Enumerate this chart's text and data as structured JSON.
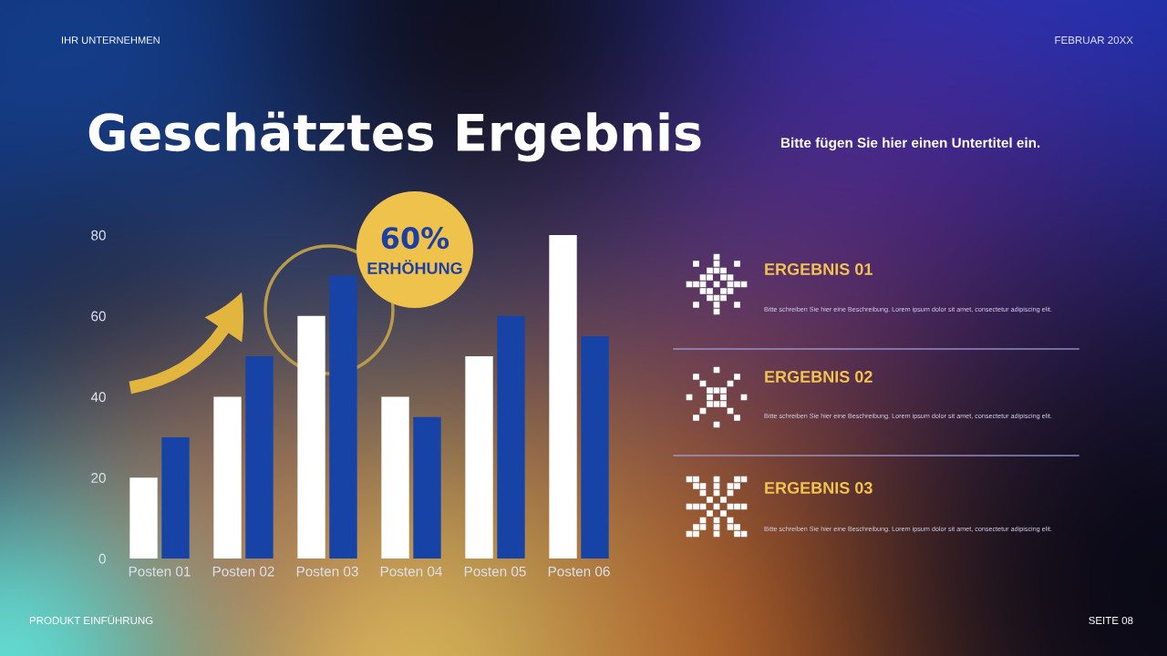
{
  "chart_data": {
    "type": "bar",
    "title": "Geschätztes Ergebnis",
    "subtitle": "Bitte fügen Sie hier einen Untertitel ein.",
    "categories": [
      "Posten 01",
      "Posten 02",
      "Posten 03",
      "Posten 04",
      "Posten 05",
      "Posten 06"
    ],
    "series": [
      {
        "color": "#ffffff",
        "values": [
          20,
          40,
          60,
          40,
          50,
          80
        ]
      },
      {
        "color": "#1743a6",
        "values": [
          30,
          50,
          70,
          35,
          60,
          55
        ]
      }
    ],
    "ylim": [
      0,
      80
    ],
    "yticks": [
      0,
      20,
      40,
      60,
      80
    ],
    "annotations": [
      "IHR UNTERNEHMEN",
      "FEBRUAR 20XX",
      "60%",
      "ERHÖHUNG",
      "ERGEBNIS 01",
      "Bitte schreiben Sie hier eine Beschreibung. Lorem ipsum dolor sit amet, consectetur adipiscing elit.",
      "ERGEBNIS 02",
      "Bitte schreiben Sie hier eine Beschreibung. Lorem ipsum dolor sit amet, consectetur adipiscing elit.",
      "ERGEBNIS 03",
      "Bitte schreiben Sie hier eine Beschreibung. Lorem ipsum dolor sit amet, consectetur adipiscing elit.",
      "PRODUKT EINFÜHRUNG",
      "SEITE 08"
    ]
  }
}
